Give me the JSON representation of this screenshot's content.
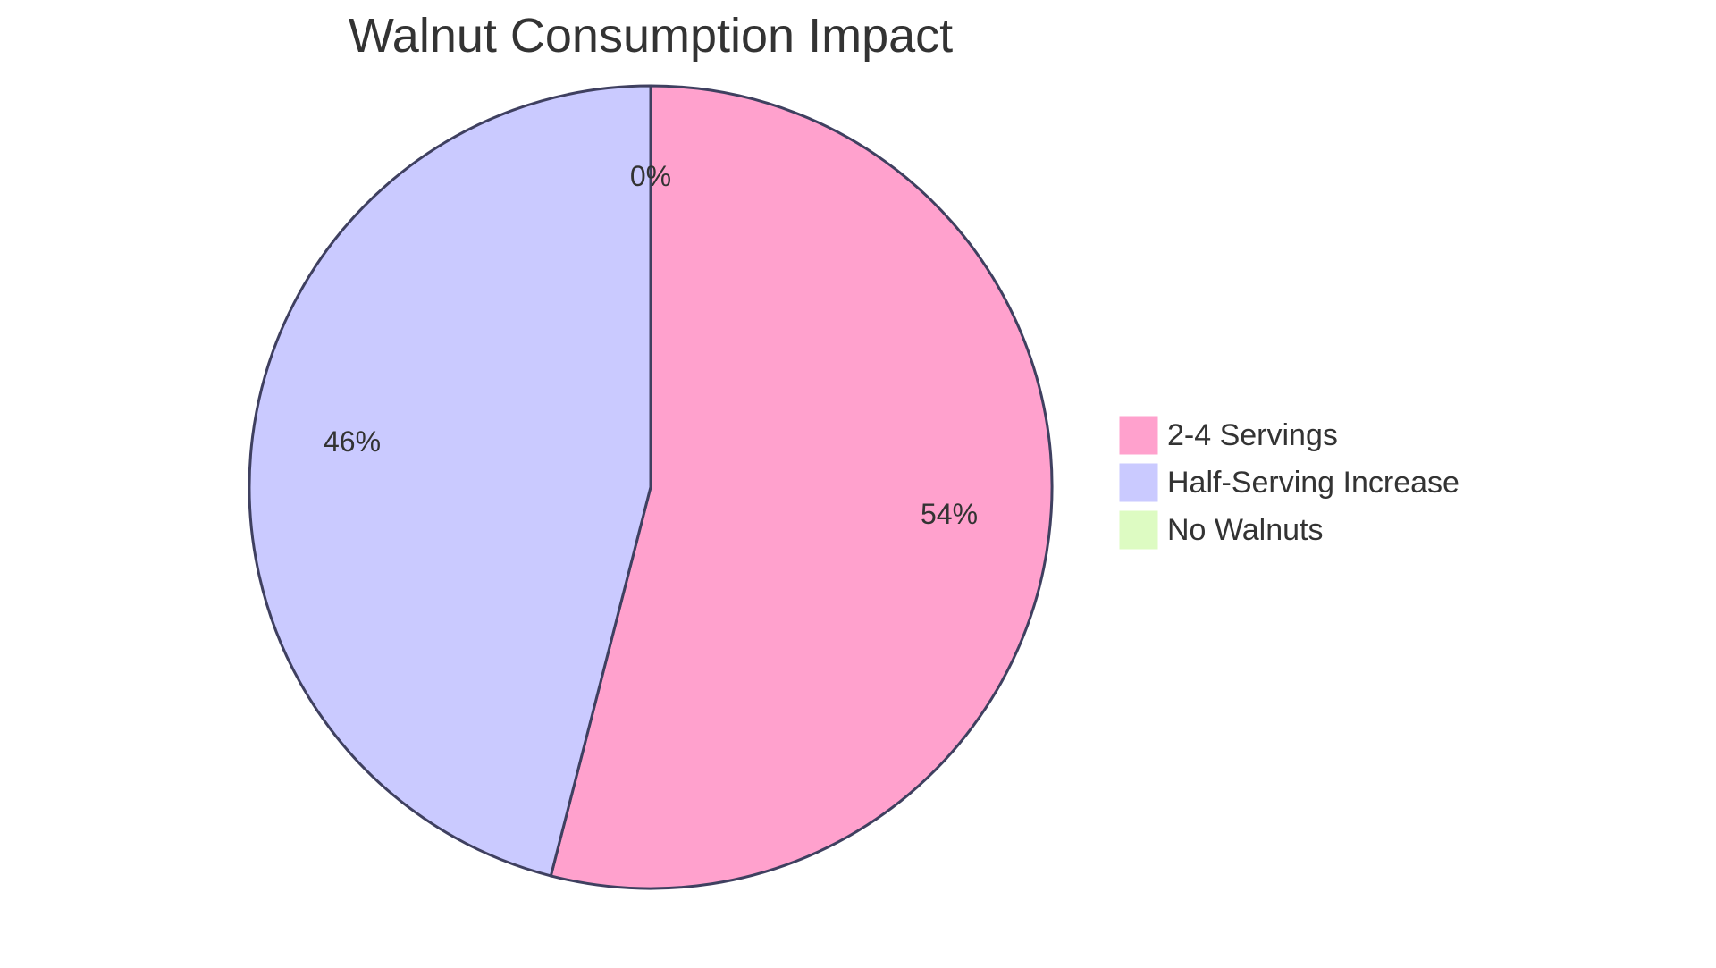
{
  "chart_data": {
    "type": "pie",
    "title": "Walnut Consumption Impact",
    "categories": [
      "2-4 Servings",
      "Half-Serving Increase",
      "No Walnuts"
    ],
    "values": [
      54,
      46,
      0
    ],
    "labels": [
      "54%",
      "46%",
      "0%"
    ],
    "colors": [
      "#FFA1CD",
      "#CACAFF",
      "#DDFBC2"
    ],
    "stroke_color": "#3F4060",
    "legend_position": "right",
    "start_angle": "top, clockwise"
  },
  "title": "Walnut Consumption Impact",
  "legend": [
    {
      "label": "2-4 Servings",
      "color": "#FFA1CD"
    },
    {
      "label": "Half-Serving Increase",
      "color": "#CACAFF"
    },
    {
      "label": "No Walnuts",
      "color": "#DDFBC2"
    }
  ],
  "slice_labels": [
    "54%",
    "46%",
    "0%"
  ]
}
